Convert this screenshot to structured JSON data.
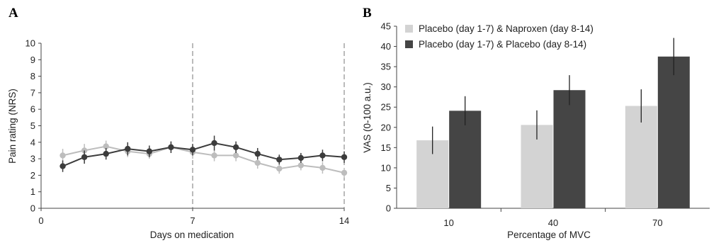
{
  "chart_data": [
    {
      "panel": "A",
      "type": "line",
      "xlabel": "Days on medication",
      "ylabel": "Pain rating (NRS)",
      "xlim": [
        0,
        14
      ],
      "ylim": [
        0,
        10
      ],
      "xticks": [
        0,
        7,
        14
      ],
      "yticks": [
        0,
        1,
        2,
        3,
        4,
        5,
        6,
        7,
        8,
        9,
        10
      ],
      "vlines": [
        7,
        14
      ],
      "grid": false,
      "series": [
        {
          "color": "#bdbdbd",
          "x": [
            1,
            2,
            3,
            4,
            5,
            6,
            7,
            8,
            9,
            10,
            11,
            12,
            13,
            14
          ],
          "y": [
            3.2,
            3.5,
            3.75,
            3.45,
            3.3,
            3.7,
            3.4,
            3.2,
            3.2,
            2.75,
            2.4,
            2.6,
            2.45,
            2.15
          ],
          "err": [
            0.4,
            0.4,
            0.35,
            0.35,
            0.3,
            0.35,
            0.4,
            0.35,
            0.35,
            0.35,
            0.3,
            0.3,
            0.35,
            0.3
          ]
        },
        {
          "color": "#3c3c3c",
          "x": [
            1,
            2,
            3,
            4,
            5,
            6,
            7,
            8,
            9,
            10,
            11,
            12,
            13,
            14
          ],
          "y": [
            2.55,
            3.1,
            3.3,
            3.6,
            3.45,
            3.7,
            3.55,
            3.95,
            3.7,
            3.3,
            2.95,
            3.05,
            3.2,
            3.1
          ],
          "err": [
            0.35,
            0.4,
            0.35,
            0.4,
            0.35,
            0.35,
            0.35,
            0.45,
            0.35,
            0.35,
            0.3,
            0.3,
            0.35,
            0.35
          ]
        }
      ]
    },
    {
      "panel": "B",
      "type": "bar",
      "xlabel": "Percentage of MVC",
      "ylabel": "VAS (0-100 a.u.)",
      "categories": [
        "10",
        "40",
        "70"
      ],
      "ylim": [
        0,
        45
      ],
      "yticks": [
        0,
        5,
        10,
        15,
        20,
        25,
        30,
        35,
        40,
        45
      ],
      "legend_position": "top-left",
      "grid": false,
      "series": [
        {
          "name": "Placebo (day 1-7) & Naproxen (day 8-14)",
          "color": "#d3d3d3",
          "values": [
            16.8,
            20.6,
            25.3
          ],
          "err": [
            3.4,
            3.6,
            4.1
          ]
        },
        {
          "name": "Placebo (day 1-7) & Placebo (day 8-14)",
          "color": "#454545",
          "values": [
            24.1,
            29.2,
            37.5
          ],
          "err": [
            3.6,
            3.7,
            4.6
          ]
        }
      ]
    }
  ]
}
